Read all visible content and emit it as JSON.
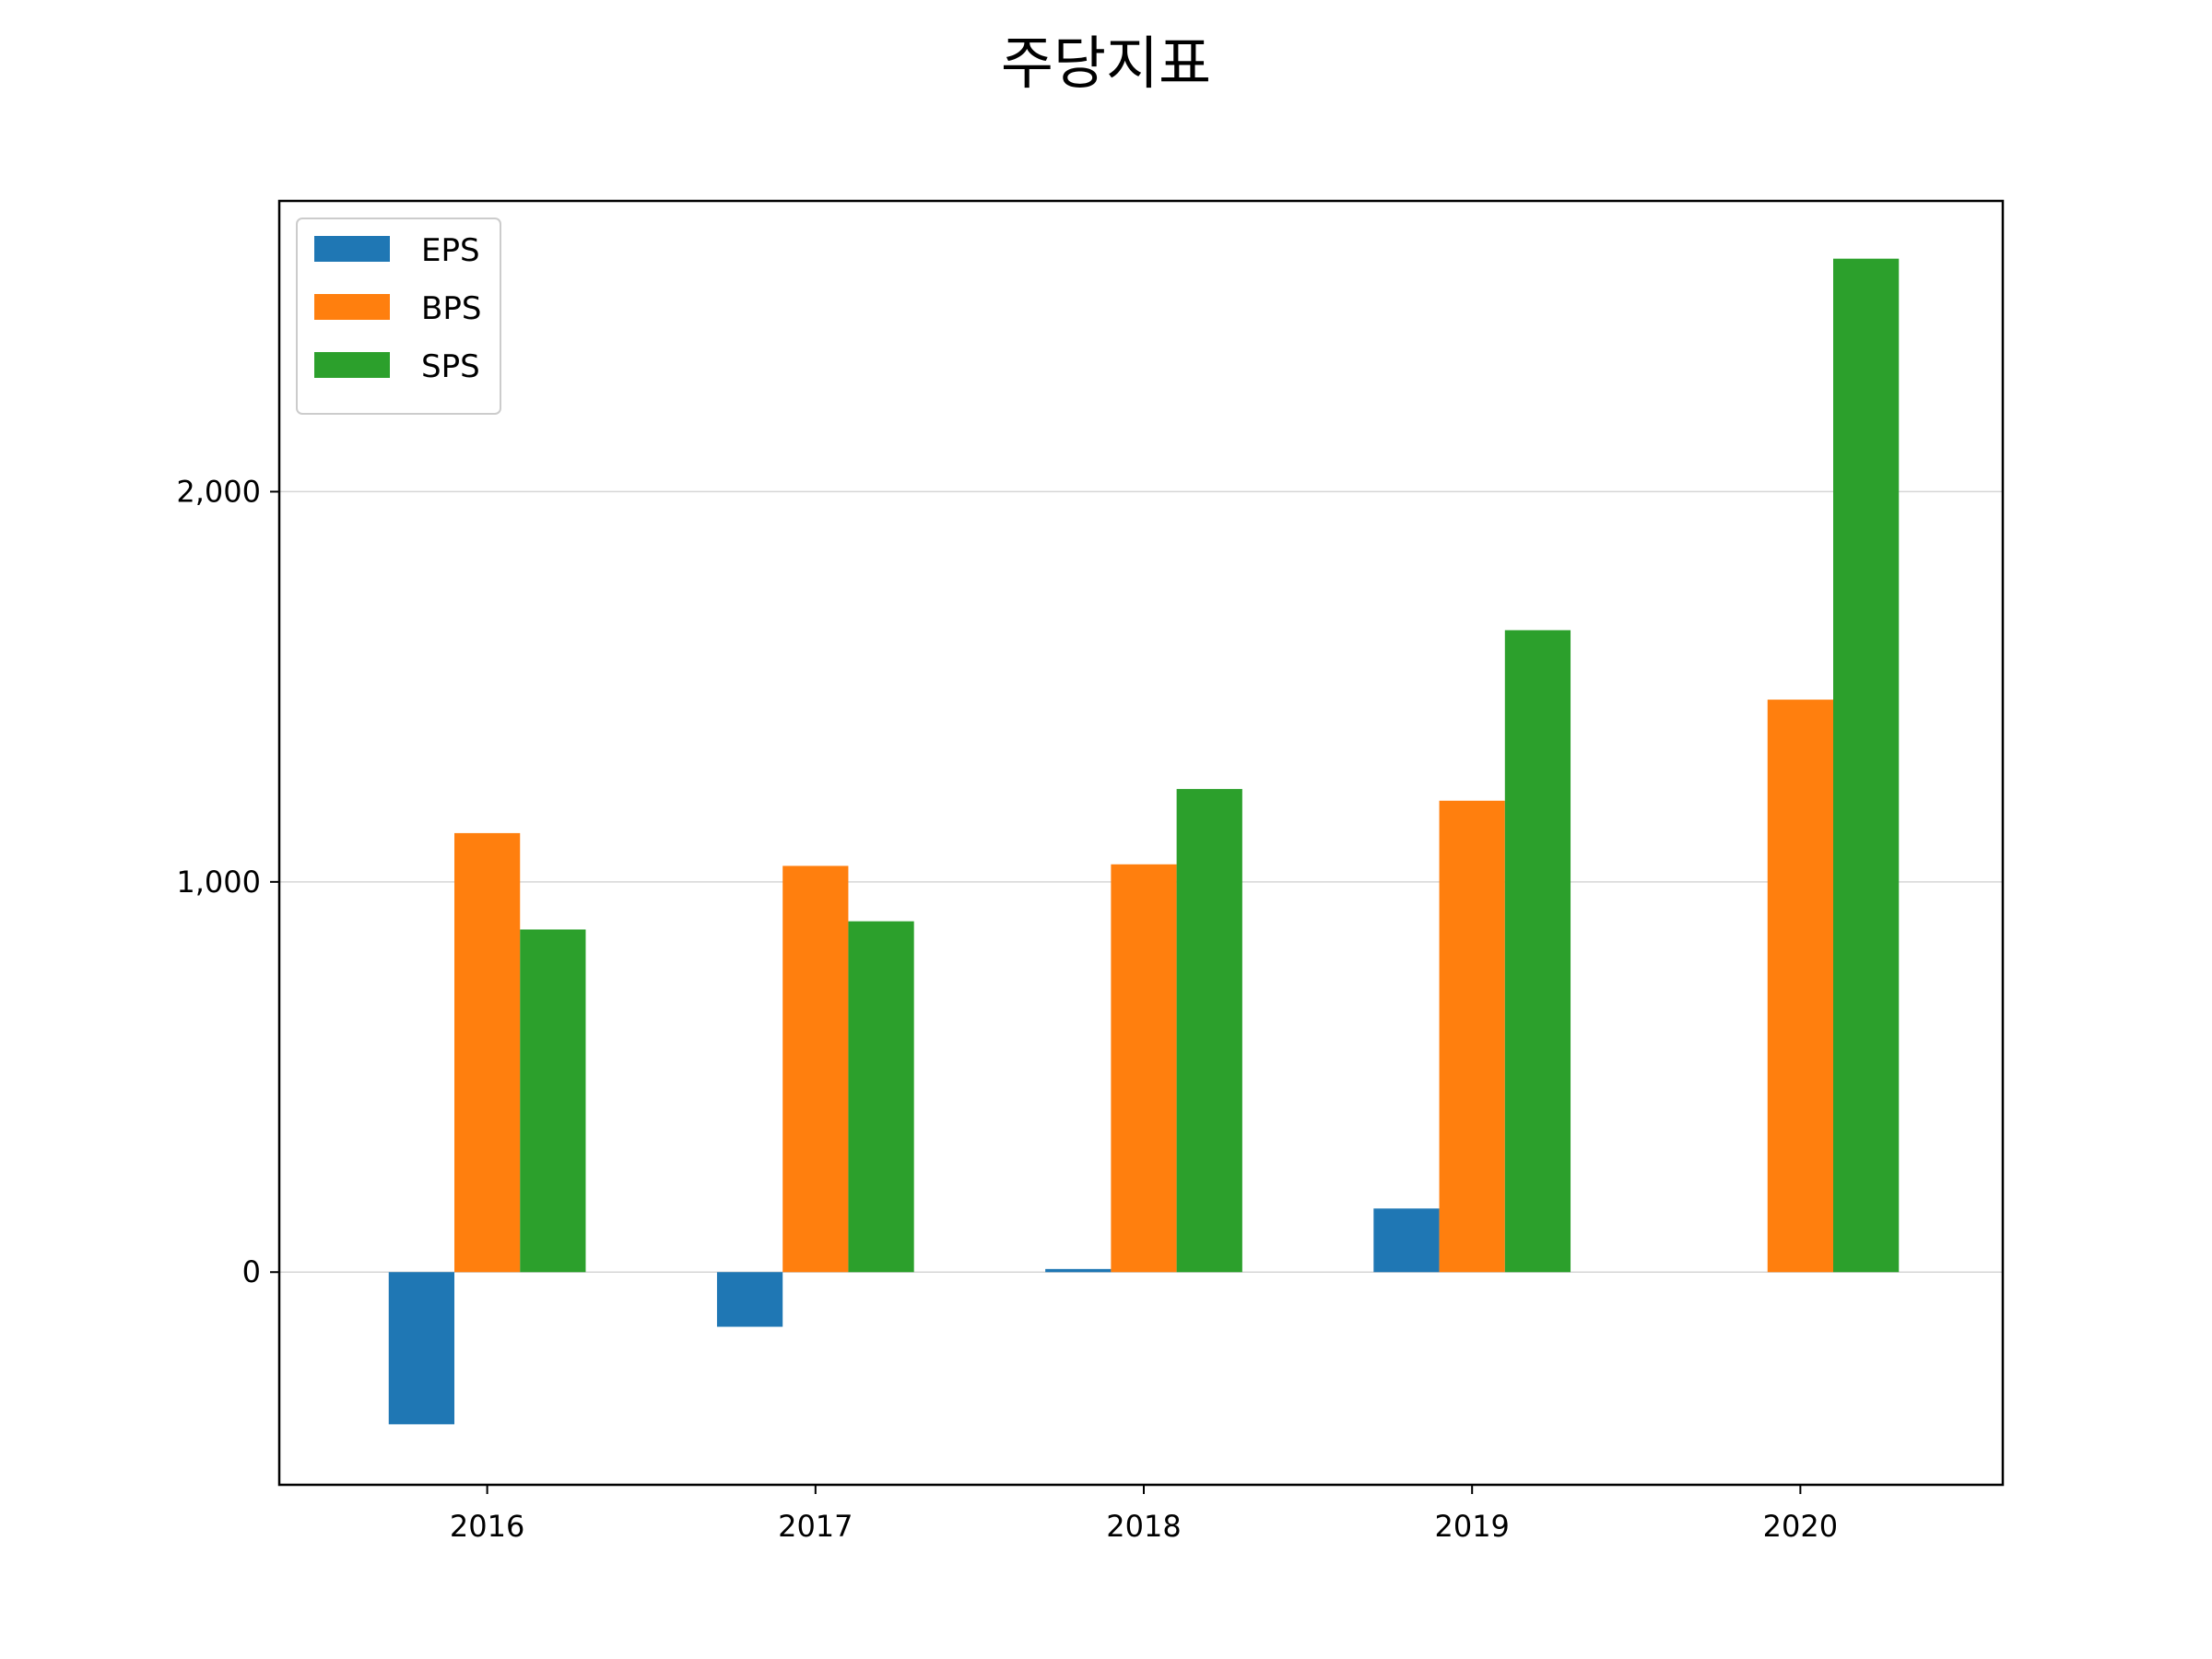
{
  "chart_data": {
    "type": "bar",
    "title": "주당지표",
    "xlabel": "",
    "ylabel": "",
    "categories": [
      "2016",
      "2017",
      "2018",
      "2019",
      "2020"
    ],
    "series": [
      {
        "name": "EPS",
        "values": [
          -390,
          -140,
          8,
          163,
          0
        ],
        "color": "#1f77b4"
      },
      {
        "name": "BPS",
        "values": [
          1125,
          1041,
          1045,
          1208,
          1467
        ],
        "color": "#ff7f0e"
      },
      {
        "name": "SPS",
        "values": [
          878,
          899,
          1238,
          1645,
          2597
        ],
        "color": "#2ca02c"
      }
    ],
    "ylim": [
      -545,
      2745
    ],
    "yticks": [
      0,
      1000,
      2000
    ],
    "ytick_labels": [
      "0",
      "1,000",
      "2,000"
    ],
    "grid": "y",
    "legend_loc": "upper left"
  }
}
